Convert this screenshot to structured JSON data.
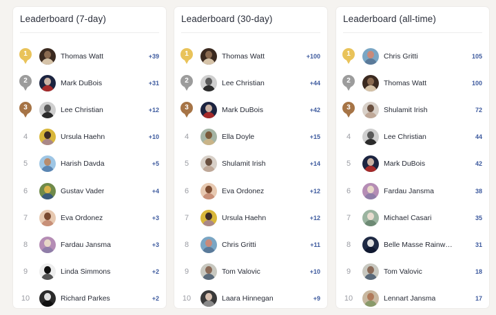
{
  "colors": {
    "gold": "#e9c35a",
    "silver": "#9c9c9c",
    "bronze": "#a67446",
    "score": "#3d5a9e"
  },
  "boards": [
    {
      "title": "Leaderboard (7-day)",
      "entries": [
        {
          "rank": "1",
          "name": "Thomas Watt",
          "score": "+39",
          "avatar": [
            "#3b2a20",
            "#8a6a50",
            "#d6c3a8"
          ]
        },
        {
          "rank": "2",
          "name": "Mark DuBois",
          "score": "+31",
          "avatar": [
            "#1c2440",
            "#c9b2a4",
            "#a52a2a"
          ]
        },
        {
          "rank": "3",
          "name": "Lee Christian",
          "score": "+12",
          "avatar": [
            "#cfcfcf",
            "#5a5a5a",
            "#2b2b2b"
          ]
        },
        {
          "rank": "4",
          "name": "Ursula Haehn",
          "score": "+10",
          "avatar": [
            "#d9b73a",
            "#3c2b26",
            "#a88"
          ]
        },
        {
          "rank": "5",
          "name": "Harish Davda",
          "score": "+5",
          "avatar": [
            "#9ec6e5",
            "#b78c6e",
            "#5b86b3"
          ]
        },
        {
          "rank": "6",
          "name": "Gustav Vader",
          "score": "+4",
          "avatar": [
            "#6f8a4a",
            "#d9b24a",
            "#3a5a7a"
          ]
        },
        {
          "rank": "7",
          "name": "Eva Ordonez",
          "score": "+3",
          "avatar": [
            "#e7c9b1",
            "#7a4a30",
            "#c89078"
          ]
        },
        {
          "rank": "8",
          "name": "Fardau Jansma",
          "score": "+3",
          "avatar": [
            "#b58db5",
            "#e7d7c7",
            "#8f7da8"
          ]
        },
        {
          "rank": "9",
          "name": "Linda Simmons",
          "score": "+2",
          "avatar": [
            "#eeeeee",
            "#111111",
            "#555555"
          ]
        },
        {
          "rank": "10",
          "name": "Richard Parkes",
          "score": "+2",
          "avatar": [
            "#2a2a2a",
            "#e0e0e0",
            "#111111"
          ]
        }
      ]
    },
    {
      "title": "Leaderboard (30-day)",
      "entries": [
        {
          "rank": "1",
          "name": "Thomas Watt",
          "score": "+100",
          "avatar": [
            "#3b2a20",
            "#8a6a50",
            "#d6c3a8"
          ]
        },
        {
          "rank": "2",
          "name": "Lee Christian",
          "score": "+44",
          "avatar": [
            "#cfcfcf",
            "#5a5a5a",
            "#2b2b2b"
          ]
        },
        {
          "rank": "3",
          "name": "Mark DuBois",
          "score": "+42",
          "avatar": [
            "#1c2440",
            "#c9b2a4",
            "#a52a2a"
          ]
        },
        {
          "rank": "4",
          "name": "Ella Doyle",
          "score": "+15",
          "avatar": [
            "#a4b4a4",
            "#7a5a3a",
            "#c9b488"
          ]
        },
        {
          "rank": "5",
          "name": "Shulamit Irish",
          "score": "+14",
          "avatar": [
            "#d8d0c8",
            "#6a5040",
            "#bfa898"
          ]
        },
        {
          "rank": "6",
          "name": "Eva Ordonez",
          "score": "+12",
          "avatar": [
            "#e7c9b1",
            "#7a4a30",
            "#c89078"
          ]
        },
        {
          "rank": "7",
          "name": "Ursula Haehn",
          "score": "+12",
          "avatar": [
            "#d9b73a",
            "#3c2b26",
            "#a88"
          ]
        },
        {
          "rank": "8",
          "name": "Chris Gritti",
          "score": "+11",
          "avatar": [
            "#7aa6c4",
            "#c98a7a",
            "#5a7a9a"
          ]
        },
        {
          "rank": "9",
          "name": "Tom Valovic",
          "score": "+10",
          "avatar": [
            "#c8c8c0",
            "#8a6a58",
            "#5a6a7a"
          ]
        },
        {
          "rank": "10",
          "name": "Laara Hinnegan",
          "score": "+9",
          "avatar": [
            "#3a3a3a",
            "#d8c0b0",
            "#8a8a8a"
          ]
        }
      ]
    },
    {
      "title": "Leaderboard (all-time)",
      "entries": [
        {
          "rank": "1",
          "name": "Chris Gritti",
          "score": "105",
          "avatar": [
            "#7aa6c4",
            "#c98a7a",
            "#5a7a9a"
          ]
        },
        {
          "rank": "2",
          "name": "Thomas Watt",
          "score": "100",
          "avatar": [
            "#3b2a20",
            "#8a6a50",
            "#d6c3a8"
          ]
        },
        {
          "rank": "3",
          "name": "Shulamit Irish",
          "score": "72",
          "avatar": [
            "#d8d0c8",
            "#6a5040",
            "#bfa898"
          ]
        },
        {
          "rank": "4",
          "name": "Lee Christian",
          "score": "44",
          "avatar": [
            "#cfcfcf",
            "#5a5a5a",
            "#2b2b2b"
          ]
        },
        {
          "rank": "5",
          "name": "Mark DuBois",
          "score": "42",
          "avatar": [
            "#1c2440",
            "#c9b2a4",
            "#a52a2a"
          ]
        },
        {
          "rank": "6",
          "name": "Fardau Jansma",
          "score": "38",
          "avatar": [
            "#b58db5",
            "#e7d7c7",
            "#8f7da8"
          ]
        },
        {
          "rank": "7",
          "name": "Michael Casari",
          "score": "35",
          "avatar": [
            "#9bb4a0",
            "#e8ddd0",
            "#6d8a74"
          ]
        },
        {
          "rank": "8",
          "name": "Belle Masse Rainw…",
          "score": "31",
          "avatar": [
            "#1f2a44",
            "#e0e0e0",
            "#0f1830"
          ]
        },
        {
          "rank": "9",
          "name": "Tom Valovic",
          "score": "18",
          "avatar": [
            "#c8c8c0",
            "#8a6a58",
            "#5a6a7a"
          ]
        },
        {
          "rank": "10",
          "name": "Lennart Jansma",
          "score": "17",
          "avatar": [
            "#c8b8a0",
            "#b07a5a",
            "#8a9a6a"
          ]
        }
      ]
    }
  ]
}
